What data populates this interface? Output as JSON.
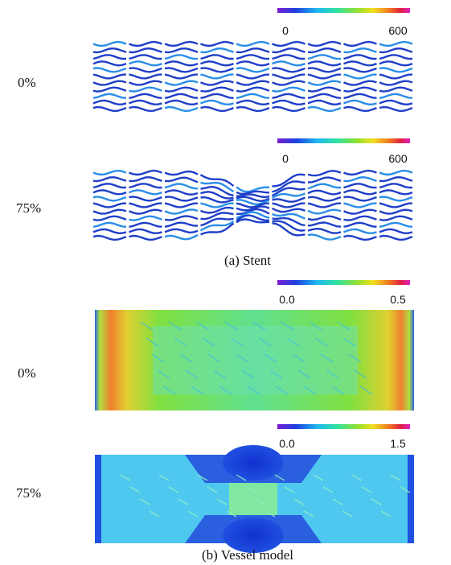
{
  "panels": [
    {
      "caption": "(a) Stent",
      "rows": [
        {
          "label": "0%",
          "colorbar": {
            "min": "0",
            "max": "600"
          }
        },
        {
          "label": "75%",
          "colorbar": {
            "min": "0",
            "max": "600"
          }
        }
      ]
    },
    {
      "caption": "(b) Vessel model",
      "rows": [
        {
          "label": "0%",
          "colorbar": {
            "min": "0.0",
            "max": "0.5"
          }
        },
        {
          "label": "75%",
          "colorbar": {
            "min": "0.0",
            "max": "1.5"
          }
        }
      ]
    }
  ]
}
